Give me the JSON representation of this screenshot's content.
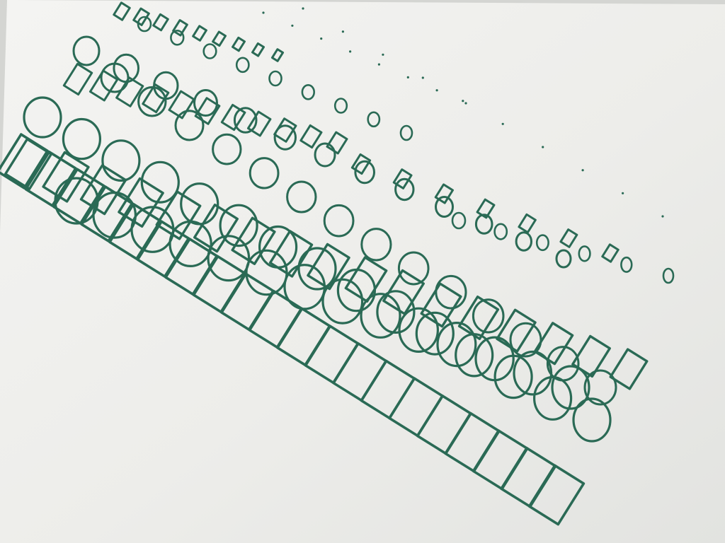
{
  "photo": {
    "subject": "",
    "paper_color": "#efefec",
    "backdrop_color": "#d4d5d2",
    "ink_color": "#2a6a55",
    "shapes": [
      "rectangle",
      "ellipse",
      "dot"
    ]
  }
}
